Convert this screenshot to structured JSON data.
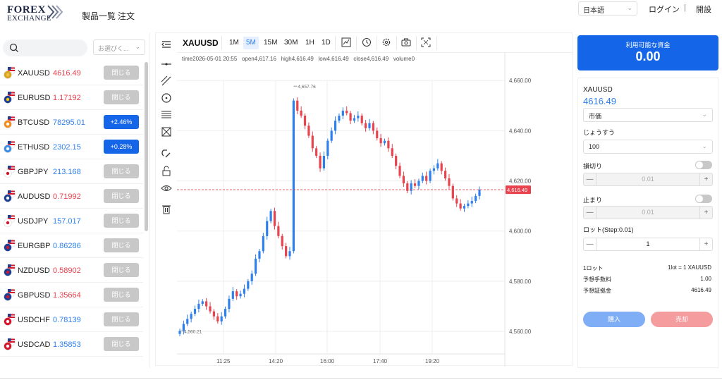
{
  "header": {
    "logo_line1": "FOREX",
    "logo_line2": "EXCHANGE",
    "nav": [
      "製品一覧",
      "注文"
    ],
    "language": "日本語",
    "login": "ログイン",
    "separator": "|",
    "open_account": "開設"
  },
  "left": {
    "filter_placeholder": "お選びく...",
    "symbols": [
      {
        "name": "XAUUSD",
        "price": "4616.49",
        "color": "red",
        "action": "閉じる",
        "action_type": "close",
        "flag": "gold"
      },
      {
        "name": "EURUSD",
        "price": "1.17192",
        "color": "red",
        "action": "閉じる",
        "action_type": "close",
        "flag": "eu"
      },
      {
        "name": "BTCUSD",
        "price": "78295.01",
        "color": "blue",
        "action": "+2.46%",
        "action_type": "pct",
        "flag": "btc"
      },
      {
        "name": "ETHUSD",
        "price": "2302.15",
        "color": "blue",
        "action": "+0.28%",
        "action_type": "pct",
        "flag": "eth"
      },
      {
        "name": "GBPJPY",
        "price": "213.168",
        "color": "blue",
        "action": "閉じる",
        "action_type": "close",
        "flag": "jp"
      },
      {
        "name": "AUDUSD",
        "price": "0.71992",
        "color": "red",
        "action": "閉じる",
        "action_type": "close",
        "flag": "au"
      },
      {
        "name": "USDJPY",
        "price": "157.017",
        "color": "blue",
        "action": "閉じる",
        "action_type": "close",
        "flag": "jp"
      },
      {
        "name": "EURGBP",
        "price": "0.86286",
        "color": "blue",
        "action": "閉じる",
        "action_type": "close",
        "flag": "gb"
      },
      {
        "name": "NZDUSD",
        "price": "0.58902",
        "color": "red",
        "action": "閉じる",
        "action_type": "close",
        "flag": "nz"
      },
      {
        "name": "GBPUSD",
        "price": "1.35664",
        "color": "red",
        "action": "閉じる",
        "action_type": "close",
        "flag": "gb"
      },
      {
        "name": "USDCHF",
        "price": "0.78139",
        "color": "blue",
        "action": "閉じる",
        "action_type": "close",
        "flag": "ch"
      },
      {
        "name": "USDCAD",
        "price": "1.35853",
        "color": "blue",
        "action": "閉じる",
        "action_type": "close",
        "flag": "ca"
      }
    ]
  },
  "chart": {
    "symbol": "XAUUSD",
    "timeframes": [
      "1M",
      "5M",
      "15M",
      "30M",
      "1H",
      "1D"
    ],
    "active_timeframe": "5M",
    "ohlc": {
      "time": "time2026-05-01 20:55",
      "open": "open4,617.16",
      "high": "high4,616.49",
      "low": "low4,616.49",
      "close": "close4,616.49",
      "volume": "volume0"
    },
    "colors": {
      "up": "#2f80ed",
      "down": "#e8434e",
      "grid": "#eeeeee"
    }
  },
  "chart_data": {
    "type": "candlestick",
    "symbol": "XAUUSD",
    "yticks": [
      "4,660.00",
      "4,640.00",
      "4,620.00",
      "4,600.00",
      "4,580.00",
      "4,560.00"
    ],
    "xticks": [
      "11:25",
      "14:20",
      "16:00",
      "17:40",
      "19:20"
    ],
    "ylim": [
      4553,
      4664
    ],
    "current_price_label": "4,616.49",
    "current_price": 4616.49,
    "high_marker": "4,657.76",
    "high_marker_value": 4657.76,
    "low_marker": "4,560.21",
    "low_marker_value": 4560.21,
    "closes": [
      4560.2,
      4563,
      4565,
      4567,
      4569,
      4571,
      4572,
      4570,
      4568,
      4566,
      4564,
      4566,
      4569,
      4573,
      4576,
      4574,
      4575,
      4577,
      4580,
      4583,
      4589,
      4592,
      4598,
      4604,
      4608,
      4602,
      4598,
      4594,
      4590,
      4592,
      4652,
      4648,
      4646,
      4642,
      4638,
      4633,
      4630,
      4625,
      4630,
      4636,
      4640,
      4644,
      4646,
      4648,
      4647,
      4644,
      4645,
      4646,
      4643,
      4641,
      4643,
      4640,
      4637,
      4635,
      4636,
      4633,
      4630,
      4626,
      4622,
      4619,
      4616,
      4619,
      4618,
      4620,
      4622,
      4620,
      4624,
      4625,
      4627,
      4624,
      4621,
      4618,
      4613,
      4611,
      4609,
      4610,
      4611,
      4612,
      4614,
      4616.49
    ]
  },
  "order": {
    "balance_label": "利用可能な資金",
    "balance_value": "0.00",
    "symbol": "XAUUSD",
    "price": "4616.49",
    "order_type": "市価",
    "lot_label": "じょうすう",
    "lot_value": "100",
    "stop_loss_label": "損切り",
    "stop_loss_value": "0.01",
    "take_profit_label": "止まり",
    "take_profit_value": "0.01",
    "lot_step_label": "ロット(Step:0.01)",
    "lot_step_value": "1",
    "minus": "—",
    "plus": "+",
    "info": [
      {
        "label": "1ロット",
        "value": "1lot = 1 XAUUSD"
      },
      {
        "label": "予想手数料",
        "value": "1.00"
      },
      {
        "label": "予想証拠金",
        "value": "4616.49"
      }
    ],
    "buy": "購入",
    "sell": "売却"
  }
}
